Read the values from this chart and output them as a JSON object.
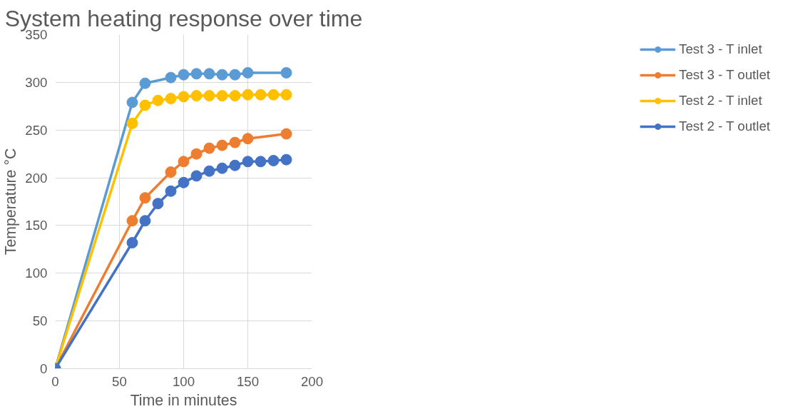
{
  "chart_data": {
    "type": "line",
    "title": "System heating response over time",
    "xlabel": "Time in minutes",
    "ylabel": "Temperature °C",
    "xlim": [
      0,
      200
    ],
    "xticks": [
      0,
      50,
      100,
      150,
      200
    ],
    "ylim": [
      0,
      350
    ],
    "yticks": [
      0,
      50,
      100,
      150,
      200,
      250,
      300,
      350
    ],
    "grid": true,
    "legend": "right",
    "marker": "circle",
    "line_style": "solid",
    "series": [
      {
        "name": "Test 3 - T inlet",
        "color": "#5b9bd5",
        "x": [
          0,
          60,
          70,
          90,
          100,
          110,
          120,
          130,
          140,
          150,
          180
        ],
        "values": [
          0,
          279,
          299,
          305,
          308,
          309,
          309,
          308,
          308,
          310,
          310
        ]
      },
      {
        "name": "Test 3 - T outlet",
        "color": "#ed7d31",
        "x": [
          0,
          60,
          70,
          90,
          100,
          110,
          120,
          130,
          140,
          150,
          180
        ],
        "values": [
          0,
          155,
          179,
          206,
          217,
          225,
          231,
          234,
          237,
          241,
          246
        ]
      },
      {
        "name": "Test 2 - T inlet",
        "color": "#ffc000",
        "x": [
          0,
          60,
          70,
          80,
          90,
          100,
          110,
          120,
          130,
          140,
          150,
          160,
          170,
          180
        ],
        "values": [
          0,
          257,
          276,
          281,
          283,
          285,
          286,
          286,
          286,
          286,
          287,
          287,
          287,
          287
        ]
      },
      {
        "name": "Test 2 - T outlet",
        "color": "#4472c4",
        "x": [
          0,
          60,
          70,
          80,
          90,
          100,
          110,
          120,
          130,
          140,
          150,
          160,
          170,
          180
        ],
        "values": [
          0,
          132,
          155,
          173,
          186,
          195,
          202,
          207,
          210,
          213,
          217,
          217,
          218,
          219
        ]
      }
    ]
  }
}
